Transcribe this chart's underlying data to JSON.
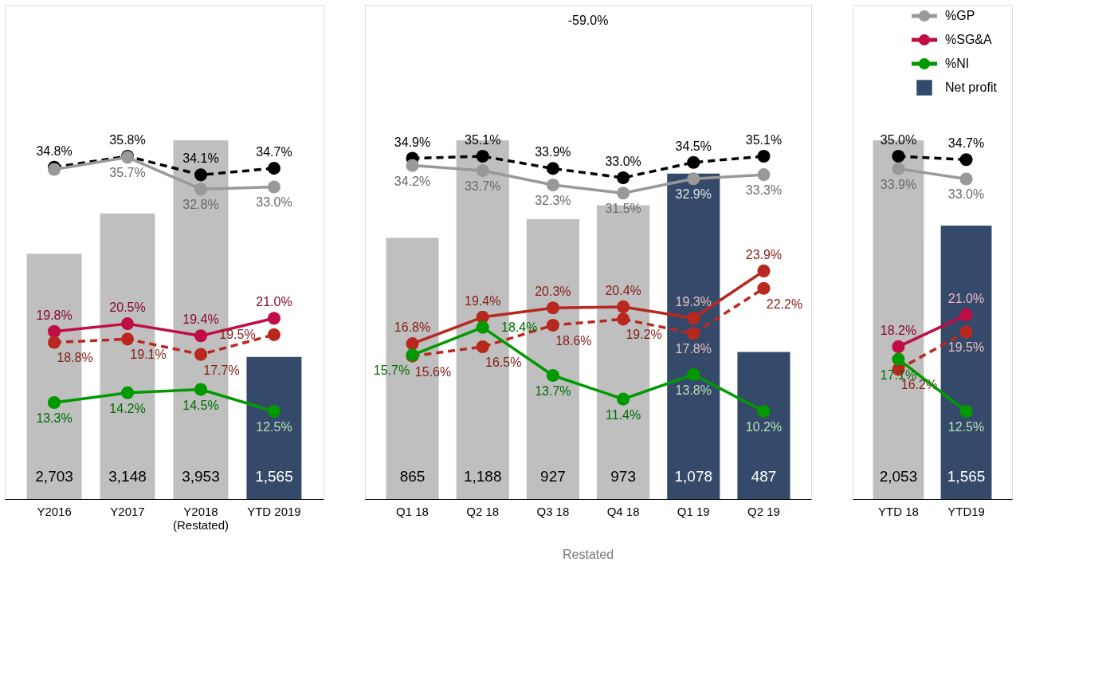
{
  "chart_data": [
    {
      "type": "bar",
      "categories": [
        "Y2016",
        "Y2017",
        "Y2018\n(Restated)",
        "YTD 2019"
      ],
      "tick_labels": "x",
      "marker": "circle",
      "series": [
        {
          "type": "bar",
          "values": [
            2703,
            3148,
            3953,
            1565
          ],
          "colors": [
            "#bfbfbf",
            "#bfbfbf",
            "#bfbfbf",
            "#354a6b"
          ],
          "value_labels": [
            "2,703",
            "3,148",
            "3,953",
            "1,565"
          ]
        },
        {
          "type": "line",
          "axis": "y2",
          "color": "#000000",
          "line_style": "dashed",
          "values": [
            34.8,
            35.8,
            34.1,
            34.7
          ],
          "value_labels": [
            "34.8%",
            "35.8%",
            "34.1%",
            "34.7%"
          ]
        },
        {
          "type": "line",
          "axis": "y2",
          "color": "#999999",
          "line_style": "solid",
          "values": [
            34.6,
            35.7,
            32.8,
            33.0
          ],
          "value_labels": [
            null,
            "35.7%",
            "32.8%",
            "33.0%"
          ]
        },
        {
          "type": "line",
          "axis": "y2",
          "color": "#c00d45",
          "line_style": "solid",
          "values": [
            19.8,
            20.5,
            19.4,
            21.0
          ],
          "value_labels": [
            "19.8%",
            "20.5%",
            "19.4%",
            "21.0%"
          ]
        },
        {
          "type": "line",
          "axis": "y2",
          "color": "#b8281f",
          "line_style": "dashed",
          "values": [
            18.8,
            19.1,
            17.7,
            19.5
          ],
          "value_labels": [
            "18.8%",
            "19.1%",
            "17.7%",
            "19.5%"
          ]
        },
        {
          "type": "line",
          "axis": "y2",
          "color": "#009900",
          "line_style": "solid",
          "values": [
            13.3,
            14.2,
            14.5,
            12.5
          ],
          "value_labels": [
            "13.3%",
            "14.2%",
            "14.5%",
            "12.5%"
          ]
        }
      ]
    },
    {
      "type": "bar",
      "categories": [
        "Q1 18",
        "Q2 18",
        "Q3 18",
        "Q4 18",
        "Q1 19",
        "Q2 19"
      ],
      "tick_labels": "x",
      "marker": "circle",
      "annotations": [
        "-59.0%",
        "Restated"
      ],
      "series": [
        {
          "type": "bar",
          "values": [
            865,
            1188,
            927,
            973,
            1078,
            487
          ],
          "colors": [
            "#bfbfbf",
            "#bfbfbf",
            "#bfbfbf",
            "#bfbfbf",
            "#354a6b",
            "#354a6b"
          ],
          "value_labels": [
            "865",
            "1,188",
            "927",
            "973",
            "1,078",
            "487"
          ]
        },
        {
          "type": "line",
          "axis": "y2",
          "color": "#000000",
          "line_style": "dashed",
          "values": [
            34.9,
            35.1,
            33.9,
            33.0,
            34.5,
            35.1
          ],
          "value_labels": [
            "34.9%",
            "35.1%",
            "33.9%",
            "33.0%",
            "34.5%",
            "35.1%"
          ]
        },
        {
          "type": "line",
          "axis": "y2",
          "color": "#999999",
          "line_style": "solid",
          "values": [
            34.2,
            33.7,
            32.3,
            31.5,
            32.9,
            33.3
          ],
          "value_labels": [
            "34.2%",
            "33.7%",
            "32.3%",
            "31.5%",
            "32.9%",
            "33.3%"
          ]
        },
        {
          "type": "line",
          "axis": "y2",
          "color": "#b8281f",
          "line_style": "solid",
          "values": [
            16.8,
            19.4,
            20.3,
            20.4,
            19.3,
            23.9
          ],
          "value_labels": [
            "16.8%",
            "19.4%",
            "20.3%",
            "20.4%",
            "19.3%",
            "23.9%"
          ]
        },
        {
          "type": "line",
          "axis": "y2",
          "color": "#b8281f",
          "line_style": "dashed",
          "values": [
            15.6,
            16.5,
            18.6,
            19.2,
            17.8,
            22.2
          ],
          "value_labels": [
            "15.6%",
            "16.5%",
            "18.6%",
            "19.2%",
            "17.8%",
            "22.2%"
          ]
        },
        {
          "type": "line",
          "axis": "y2",
          "color": "#009900",
          "line_style": "solid",
          "values": [
            15.7,
            18.4,
            13.7,
            11.4,
            13.8,
            10.2
          ],
          "value_labels": [
            "15.7%",
            "18.4%",
            "13.7%",
            "11.4%",
            "13.8%",
            "10.2%"
          ]
        }
      ]
    },
    {
      "type": "bar",
      "categories": [
        "YTD 18",
        "YTD19"
      ],
      "tick_labels": "x",
      "marker": "circle",
      "legend": "top right",
      "series": [
        {
          "type": "bar",
          "name": "Net profit",
          "color": "#354a6b",
          "values": [
            2053,
            1565
          ],
          "colors": [
            "#bfbfbf",
            "#354a6b"
          ],
          "value_labels": [
            "2,053",
            "1,565"
          ]
        },
        {
          "type": "line",
          "axis": "y2",
          "color": "#000000",
          "line_style": "dashed",
          "values": [
            35.0,
            34.7
          ],
          "value_labels": [
            "35.0%",
            "34.7%"
          ]
        },
        {
          "type": "line",
          "axis": "y2",
          "name": "%GP",
          "color": "#999999",
          "line_style": "solid",
          "values": [
            33.9,
            33.0
          ],
          "value_labels": [
            "33.9%",
            "33.0%"
          ]
        },
        {
          "type": "line",
          "axis": "y2",
          "name": "%SG&A",
          "color": "#c00d45",
          "line_style": "solid",
          "values": [
            18.2,
            21.0
          ],
          "value_labels": [
            "18.2%",
            "21.0%"
          ]
        },
        {
          "type": "line",
          "axis": "y2",
          "color": "#b8281f",
          "line_style": "dashed",
          "values": [
            16.2,
            19.5
          ],
          "value_labels": [
            "16.2%",
            "19.5%"
          ]
        },
        {
          "type": "line",
          "axis": "y2",
          "name": "%NI",
          "color": "#009900",
          "line_style": "solid",
          "values": [
            17.1,
            12.5
          ],
          "value_labels": [
            "17.1%",
            "12.5%"
          ]
        }
      ]
    }
  ]
}
